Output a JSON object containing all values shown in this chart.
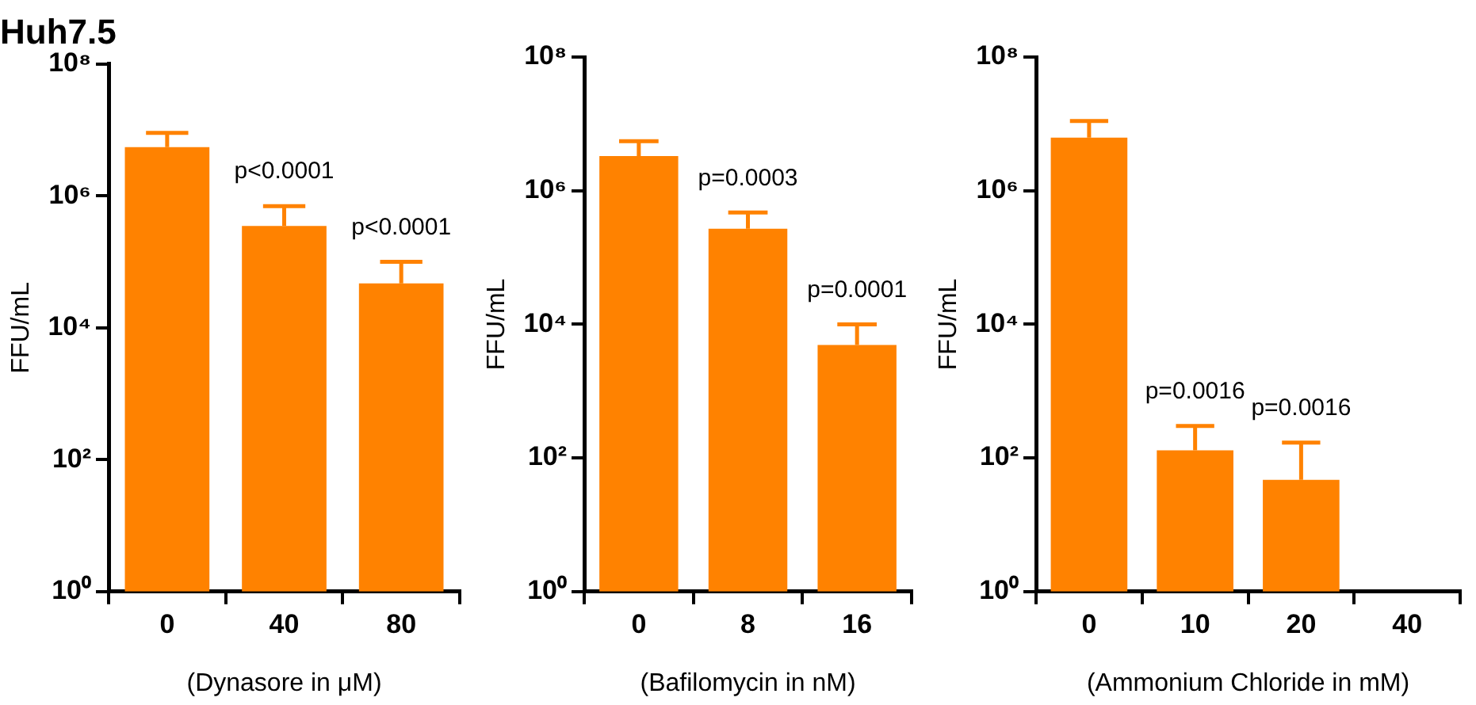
{
  "chart_data": [
    {
      "type": "bar",
      "title": "Huh7.5",
      "xlabel": "(Dynasore in μM)",
      "ylabel": "FFU/mL",
      "categories": [
        "0",
        "40",
        "80"
      ],
      "values": [
        5500000,
        350000,
        47000
      ],
      "errors": [
        [
          5500000,
          9000000
        ],
        [
          350000,
          700000
        ],
        [
          47000,
          100000
        ]
      ],
      "color": "#ff8200",
      "log": "y",
      "ylim": [
        1,
        100000000
      ],
      "yticks": [
        {
          "value": 1,
          "label": "10⁰"
        },
        {
          "value": 100,
          "label": "10²"
        },
        {
          "value": 10000,
          "label": "10⁴"
        },
        {
          "value": 1000000,
          "label": "10⁶"
        },
        {
          "value": 100000000,
          "label": "10⁸"
        }
      ],
      "grid": false,
      "legend": false,
      "annotations": [
        "p<0.0001",
        "p<0.0001"
      ]
    },
    {
      "type": "bar",
      "xlabel": "(Bafilomycin in nM)",
      "ylabel": "FFU/mL",
      "categories": [
        "0",
        "8",
        "16"
      ],
      "values": [
        3300000,
        270000,
        4900
      ],
      "errors": [
        [
          3300000,
          5500000
        ],
        [
          270000,
          470000
        ],
        [
          4900,
          10000
        ]
      ],
      "color": "#ff8200",
      "log": "y",
      "ylim": [
        1,
        100000000
      ],
      "yticks": [
        {
          "value": 1,
          "label": "10⁰"
        },
        {
          "value": 100,
          "label": "10²"
        },
        {
          "value": 10000,
          "label": "10⁴"
        },
        {
          "value": 1000000,
          "label": "10⁶"
        },
        {
          "value": 100000000,
          "label": "10⁸"
        }
      ],
      "grid": false,
      "legend": false,
      "annotations": [
        "p=0.0003",
        "p=0.0001"
      ]
    },
    {
      "type": "bar",
      "xlabel": "(Ammonium Chloride in mM)",
      "ylabel": "FFU/mL",
      "categories": [
        "0",
        "10",
        "20",
        "40"
      ],
      "values": [
        6200000,
        130,
        47,
        null
      ],
      "errors": [
        [
          6200000,
          11000000
        ],
        [
          130,
          300
        ],
        [
          47,
          170
        ],
        null
      ],
      "color": "#ff8200",
      "log": "y",
      "ylim": [
        1,
        100000000
      ],
      "yticks": [
        {
          "value": 1,
          "label": "10⁰"
        },
        {
          "value": 100,
          "label": "10²"
        },
        {
          "value": 10000,
          "label": "10⁴"
        },
        {
          "value": 1000000,
          "label": "10⁶"
        },
        {
          "value": 100000000,
          "label": "10⁸"
        }
      ],
      "grid": false,
      "legend": false,
      "annotations": [
        "p=0.0016",
        "p=0.0016"
      ]
    }
  ]
}
